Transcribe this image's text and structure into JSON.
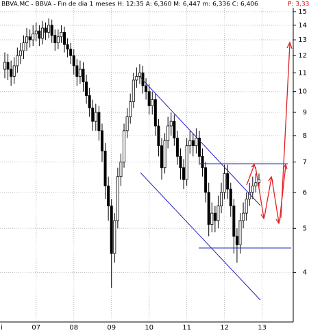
{
  "chart_data": {
    "type": "candlestick",
    "title": "BBVA.MC - BBVA - Fin de dia 1 meses H: 12:35 A: 6,360 M: 6,447 m: 6,336 C: 6,406",
    "title_extra": "P: 3,33",
    "x_edge_label": "i",
    "categories": [
      null,
      null,
      null,
      null,
      null,
      null,
      null,
      null,
      null,
      null,
      "07",
      null,
      null,
      null,
      null,
      null,
      null,
      null,
      null,
      null,
      null,
      null,
      "08",
      null,
      null,
      null,
      null,
      null,
      null,
      null,
      null,
      null,
      null,
      null,
      "09",
      null,
      null,
      null,
      null,
      null,
      null,
      null,
      null,
      null,
      null,
      null,
      "10",
      null,
      null,
      null,
      null,
      null,
      null,
      null,
      null,
      null,
      null,
      null,
      "11",
      null,
      null,
      null,
      null,
      null,
      null,
      null,
      null,
      null,
      null,
      null,
      "12",
      null,
      null,
      null,
      null,
      null,
      null,
      null,
      null,
      null,
      null,
      null,
      "13",
      null,
      null,
      null,
      null,
      null,
      null,
      null,
      null
    ],
    "open": [
      11.2,
      11.6,
      11.2,
      10.8,
      11.4,
      12.0,
      12.3,
      12.8,
      13.2,
      13.0,
      13.4,
      13.6,
      13.1,
      13.8,
      13.5,
      14.0,
      13.3,
      12.8,
      13.2,
      13.5,
      12.7,
      12.4,
      12.0,
      11.4,
      10.8,
      11.2,
      10.5,
      9.8,
      9.2,
      8.6,
      9.0,
      8.2,
      7.4,
      6.2,
      5.6,
      4.4,
      5.2,
      6.5,
      7.0,
      8.2,
      8.8,
      9.5,
      10.6,
      10.8,
      11.0,
      10.3,
      10.0,
      9.3,
      9.6,
      8.4,
      7.6,
      6.8,
      7.8,
      8.4,
      8.6,
      7.9,
      7.2,
      6.8,
      6.4,
      7.6,
      7.8,
      7.6,
      7.9,
      7.2,
      6.8,
      6.0,
      5.1,
      5.4,
      5.2,
      5.6,
      6.0,
      6.6,
      6.1,
      5.6,
      4.8,
      4.6,
      5.2,
      5.4,
      5.8,
      6.0,
      6.2,
      6.3,
      null,
      null,
      null,
      null,
      null,
      null,
      null,
      null,
      null
    ],
    "high": [
      12.2,
      12.1,
      11.7,
      11.9,
      12.5,
      12.8,
      13.3,
      13.8,
      13.7,
      14.0,
      14.2,
      14.0,
      14.3,
      14.2,
      14.5,
      14.4,
      13.7,
      13.7,
      14.0,
      13.9,
      13.1,
      12.8,
      12.4,
      11.8,
      11.7,
      11.6,
      10.9,
      10.2,
      9.6,
      9.4,
      9.3,
      8.5,
      7.7,
      6.5,
      5.8,
      5.4,
      6.8,
      7.3,
      8.5,
      9.2,
      9.9,
      11.0,
      11.3,
      11.5,
      11.4,
      10.7,
      10.4,
      10.0,
      9.9,
      8.7,
      7.9,
      8.1,
      8.8,
      9.0,
      8.9,
      8.2,
      7.5,
      7.1,
      7.9,
      8.2,
      8.1,
      8.3,
      8.2,
      7.5,
      7.0,
      6.3,
      5.7,
      5.6,
      5.9,
      6.3,
      6.9,
      6.9,
      6.3,
      5.8,
      5.0,
      5.4,
      5.7,
      6.0,
      6.3,
      6.5,
      6.6,
      6.6,
      null,
      null,
      null,
      null,
      null,
      null,
      null,
      null,
      null
    ],
    "low": [
      10.7,
      10.6,
      10.3,
      10.4,
      11.0,
      11.5,
      11.8,
      12.3,
      12.5,
      12.6,
      12.9,
      12.6,
      12.7,
      13.0,
      13.1,
      12.8,
      12.3,
      12.4,
      12.8,
      12.2,
      11.9,
      11.5,
      10.9,
      10.3,
      10.4,
      10.0,
      9.4,
      8.8,
      8.2,
      8.2,
      7.8,
      7.0,
      5.8,
      5.2,
      3.7,
      4.2,
      5.0,
      6.2,
      6.8,
      7.9,
      8.5,
      9.2,
      10.2,
      10.4,
      9.9,
      9.6,
      8.9,
      8.9,
      8.0,
      7.2,
      6.4,
      6.6,
      7.5,
      8.0,
      7.6,
      6.9,
      6.4,
      6.1,
      6.2,
      7.3,
      7.2,
      7.3,
      6.9,
      6.5,
      5.7,
      4.8,
      4.9,
      4.9,
      5.0,
      5.4,
      5.8,
      5.8,
      5.3,
      4.4,
      4.2,
      4.4,
      5.0,
      5.2,
      5.6,
      5.8,
      6.0,
      6.1,
      null,
      null,
      null,
      null,
      null,
      null,
      null,
      null,
      null
    ],
    "close": [
      11.6,
      11.2,
      10.8,
      11.4,
      12.0,
      12.3,
      12.8,
      13.2,
      13.0,
      13.4,
      13.6,
      13.1,
      13.8,
      13.5,
      14.0,
      13.3,
      12.8,
      13.2,
      13.5,
      12.7,
      12.4,
      12.0,
      11.4,
      10.8,
      11.2,
      10.5,
      9.8,
      9.2,
      8.6,
      9.0,
      8.2,
      7.4,
      6.2,
      5.6,
      4.4,
      5.2,
      6.5,
      7.0,
      8.2,
      8.8,
      9.5,
      10.6,
      10.8,
      11.0,
      10.3,
      10.0,
      9.3,
      9.6,
      8.4,
      7.6,
      6.8,
      7.8,
      8.4,
      8.6,
      7.9,
      7.2,
      6.8,
      6.4,
      7.6,
      7.8,
      7.6,
      7.9,
      7.2,
      6.8,
      6.0,
      5.1,
      5.4,
      5.2,
      5.6,
      6.0,
      6.6,
      6.1,
      5.6,
      4.8,
      4.6,
      5.2,
      5.4,
      5.8,
      6.0,
      6.2,
      6.3,
      6.4,
      null,
      null,
      null,
      null,
      null,
      null,
      null,
      null,
      null
    ],
    "ylim": [
      3.11,
      15.26
    ],
    "log_scale": true,
    "yticks": [
      4,
      5,
      6,
      7,
      8,
      9,
      10,
      11,
      12,
      13,
      14,
      15
    ],
    "grid": true,
    "up_color": "#ffffff",
    "down_color": "#000000"
  }
}
